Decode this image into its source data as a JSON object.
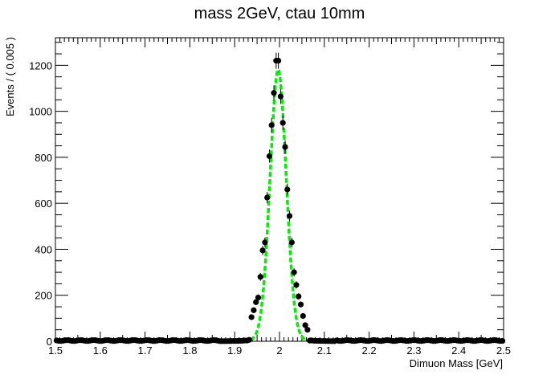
{
  "chart_data": {
    "type": "scatter",
    "title": "mass 2GeV, ctau 10mm",
    "xlabel": "Dimuon Mass [GeV]",
    "ylabel": "Events / ( 0.005 )",
    "xlim": [
      1.5,
      2.5
    ],
    "ylim": [
      0,
      1320
    ],
    "x_ticks": [
      1.5,
      1.6,
      1.7,
      1.8,
      1.9,
      2.0,
      2.1,
      2.2,
      2.3,
      2.4,
      2.5
    ],
    "x_tick_labels": [
      "1.5",
      "1.6",
      "1.7",
      "1.8",
      "1.9",
      "2",
      "2.1",
      "2.2",
      "2.3",
      "2.4",
      "2.5"
    ],
    "y_ticks": [
      0,
      200,
      400,
      600,
      800,
      1000,
      1200
    ],
    "y_tick_labels": [
      "0",
      "200",
      "400",
      "600",
      "800",
      "1000",
      "1200"
    ],
    "grid": false,
    "series": [
      {
        "kind": "points_with_errors",
        "color": "#000000",
        "x": [
          1.9375,
          1.9425,
          1.9475,
          1.9525,
          1.9575,
          1.9625,
          1.9675,
          1.9725,
          1.9775,
          1.9825,
          1.9875,
          1.9925,
          1.9975,
          2.0025,
          2.0075,
          2.0125,
          2.0175,
          2.0225,
          2.0275,
          2.0325,
          2.0375,
          2.0425,
          2.0475,
          2.0525,
          2.0575,
          2.0625
        ],
        "y": [
          105,
          135,
          170,
          190,
          280,
          395,
          430,
          625,
          805,
          940,
          1080,
          1220,
          1220,
          1065,
          950,
          845,
          660,
          545,
          430,
          300,
          245,
          195,
          160,
          110,
          70,
          50
        ]
      },
      {
        "kind": "fit_curve",
        "style": "dashed",
        "color": "#00ee00",
        "model": "gaussian",
        "peak": 1150,
        "mean": 1.997,
        "sigma": 0.018
      }
    ]
  }
}
